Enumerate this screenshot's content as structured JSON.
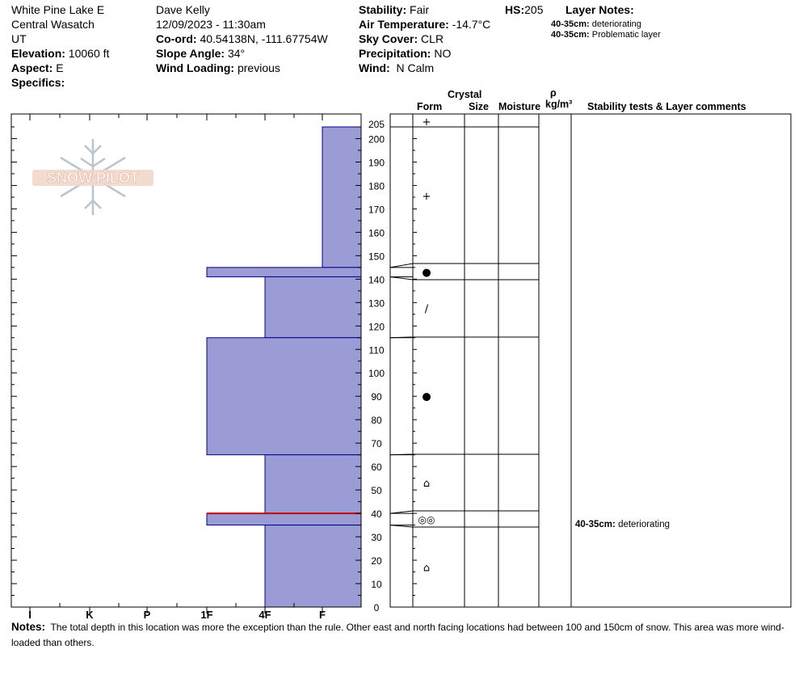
{
  "header": {
    "location": "White Pine Lake E",
    "range": "Central Wasatch",
    "state": "UT",
    "elevation_label": "Elevation:",
    "elevation": "10060 ft",
    "aspect_label": "Aspect:",
    "aspect": "E",
    "specifics_label": "Specifics:",
    "observer": "Dave Kelly",
    "datetime": "12/09/2023 - 11:30am",
    "coord_label": "Co-ord:",
    "coord": "40.54138N, -111.67754W",
    "slope_label": "Slope Angle:",
    "slope": "34°",
    "wind_loading_label": "Wind Loading:",
    "wind_loading": "previous",
    "stability_label": "Stability:",
    "stability": "Fair",
    "air_temp_label": "Air Temperature:",
    "air_temp": "-14.7°C",
    "sky_label": "Sky Cover:",
    "sky": "CLR",
    "precip_label": "Precipitation:",
    "precip": "NO",
    "wind_label": "Wind:",
    "wind": "N Calm",
    "hs_label": "HS:",
    "hs": "205",
    "layer_notes_label": "Layer Notes:",
    "layer_notes": [
      {
        "depth": "40-35cm:",
        "text": "deteriorating"
      },
      {
        "depth": "40-35cm:",
        "text": "Problematic layer"
      }
    ]
  },
  "logo_text": "SNOW PILOT",
  "columns": {
    "crystal": "Crystal",
    "form": "Form",
    "size": "Size",
    "moisture": "Moisture",
    "rho": "ρ",
    "density_unit": "kg/m³",
    "comments": "Stability tests & Layer comments"
  },
  "stability_comment": {
    "depth": "40-35cm:",
    "text": "deteriorating"
  },
  "notes_label": "Notes:",
  "notes": "The total depth in this location was more the exception than the rule.  Other east and north facing locations had between 100 and 150cm of snow.  This area was more wind-loaded than others.",
  "chart_data": {
    "type": "bar",
    "hardness_scale": [
      "I",
      "K",
      "P",
      "1F",
      "4F",
      "F"
    ],
    "height_ticks": [
      0,
      10,
      20,
      30,
      40,
      50,
      60,
      70,
      80,
      90,
      100,
      110,
      120,
      130,
      140,
      150,
      160,
      170,
      180,
      190,
      200,
      205
    ],
    "ylim": [
      0,
      205
    ],
    "layers": [
      {
        "top": 205,
        "bottom": 145,
        "hardness": "F",
        "form": "+"
      },
      {
        "top": 145,
        "bottom": 141,
        "hardness": "1F",
        "form": "●"
      },
      {
        "top": 141,
        "bottom": 115,
        "hardness": "4F",
        "form": "/"
      },
      {
        "top": 115,
        "bottom": 65,
        "hardness": "1F",
        "form": "●"
      },
      {
        "top": 65,
        "bottom": 40,
        "hardness": "4F",
        "form": "⌂"
      },
      {
        "top": 40,
        "bottom": 35,
        "hardness": "1F",
        "form": "◎◎"
      },
      {
        "top": 35,
        "bottom": 0,
        "hardness": "4F",
        "form": "⌂"
      }
    ],
    "problem_layer": 40
  },
  "colors": {
    "fill": "#9b9bd6",
    "stroke": "#00008b",
    "problem": "#c00000"
  }
}
